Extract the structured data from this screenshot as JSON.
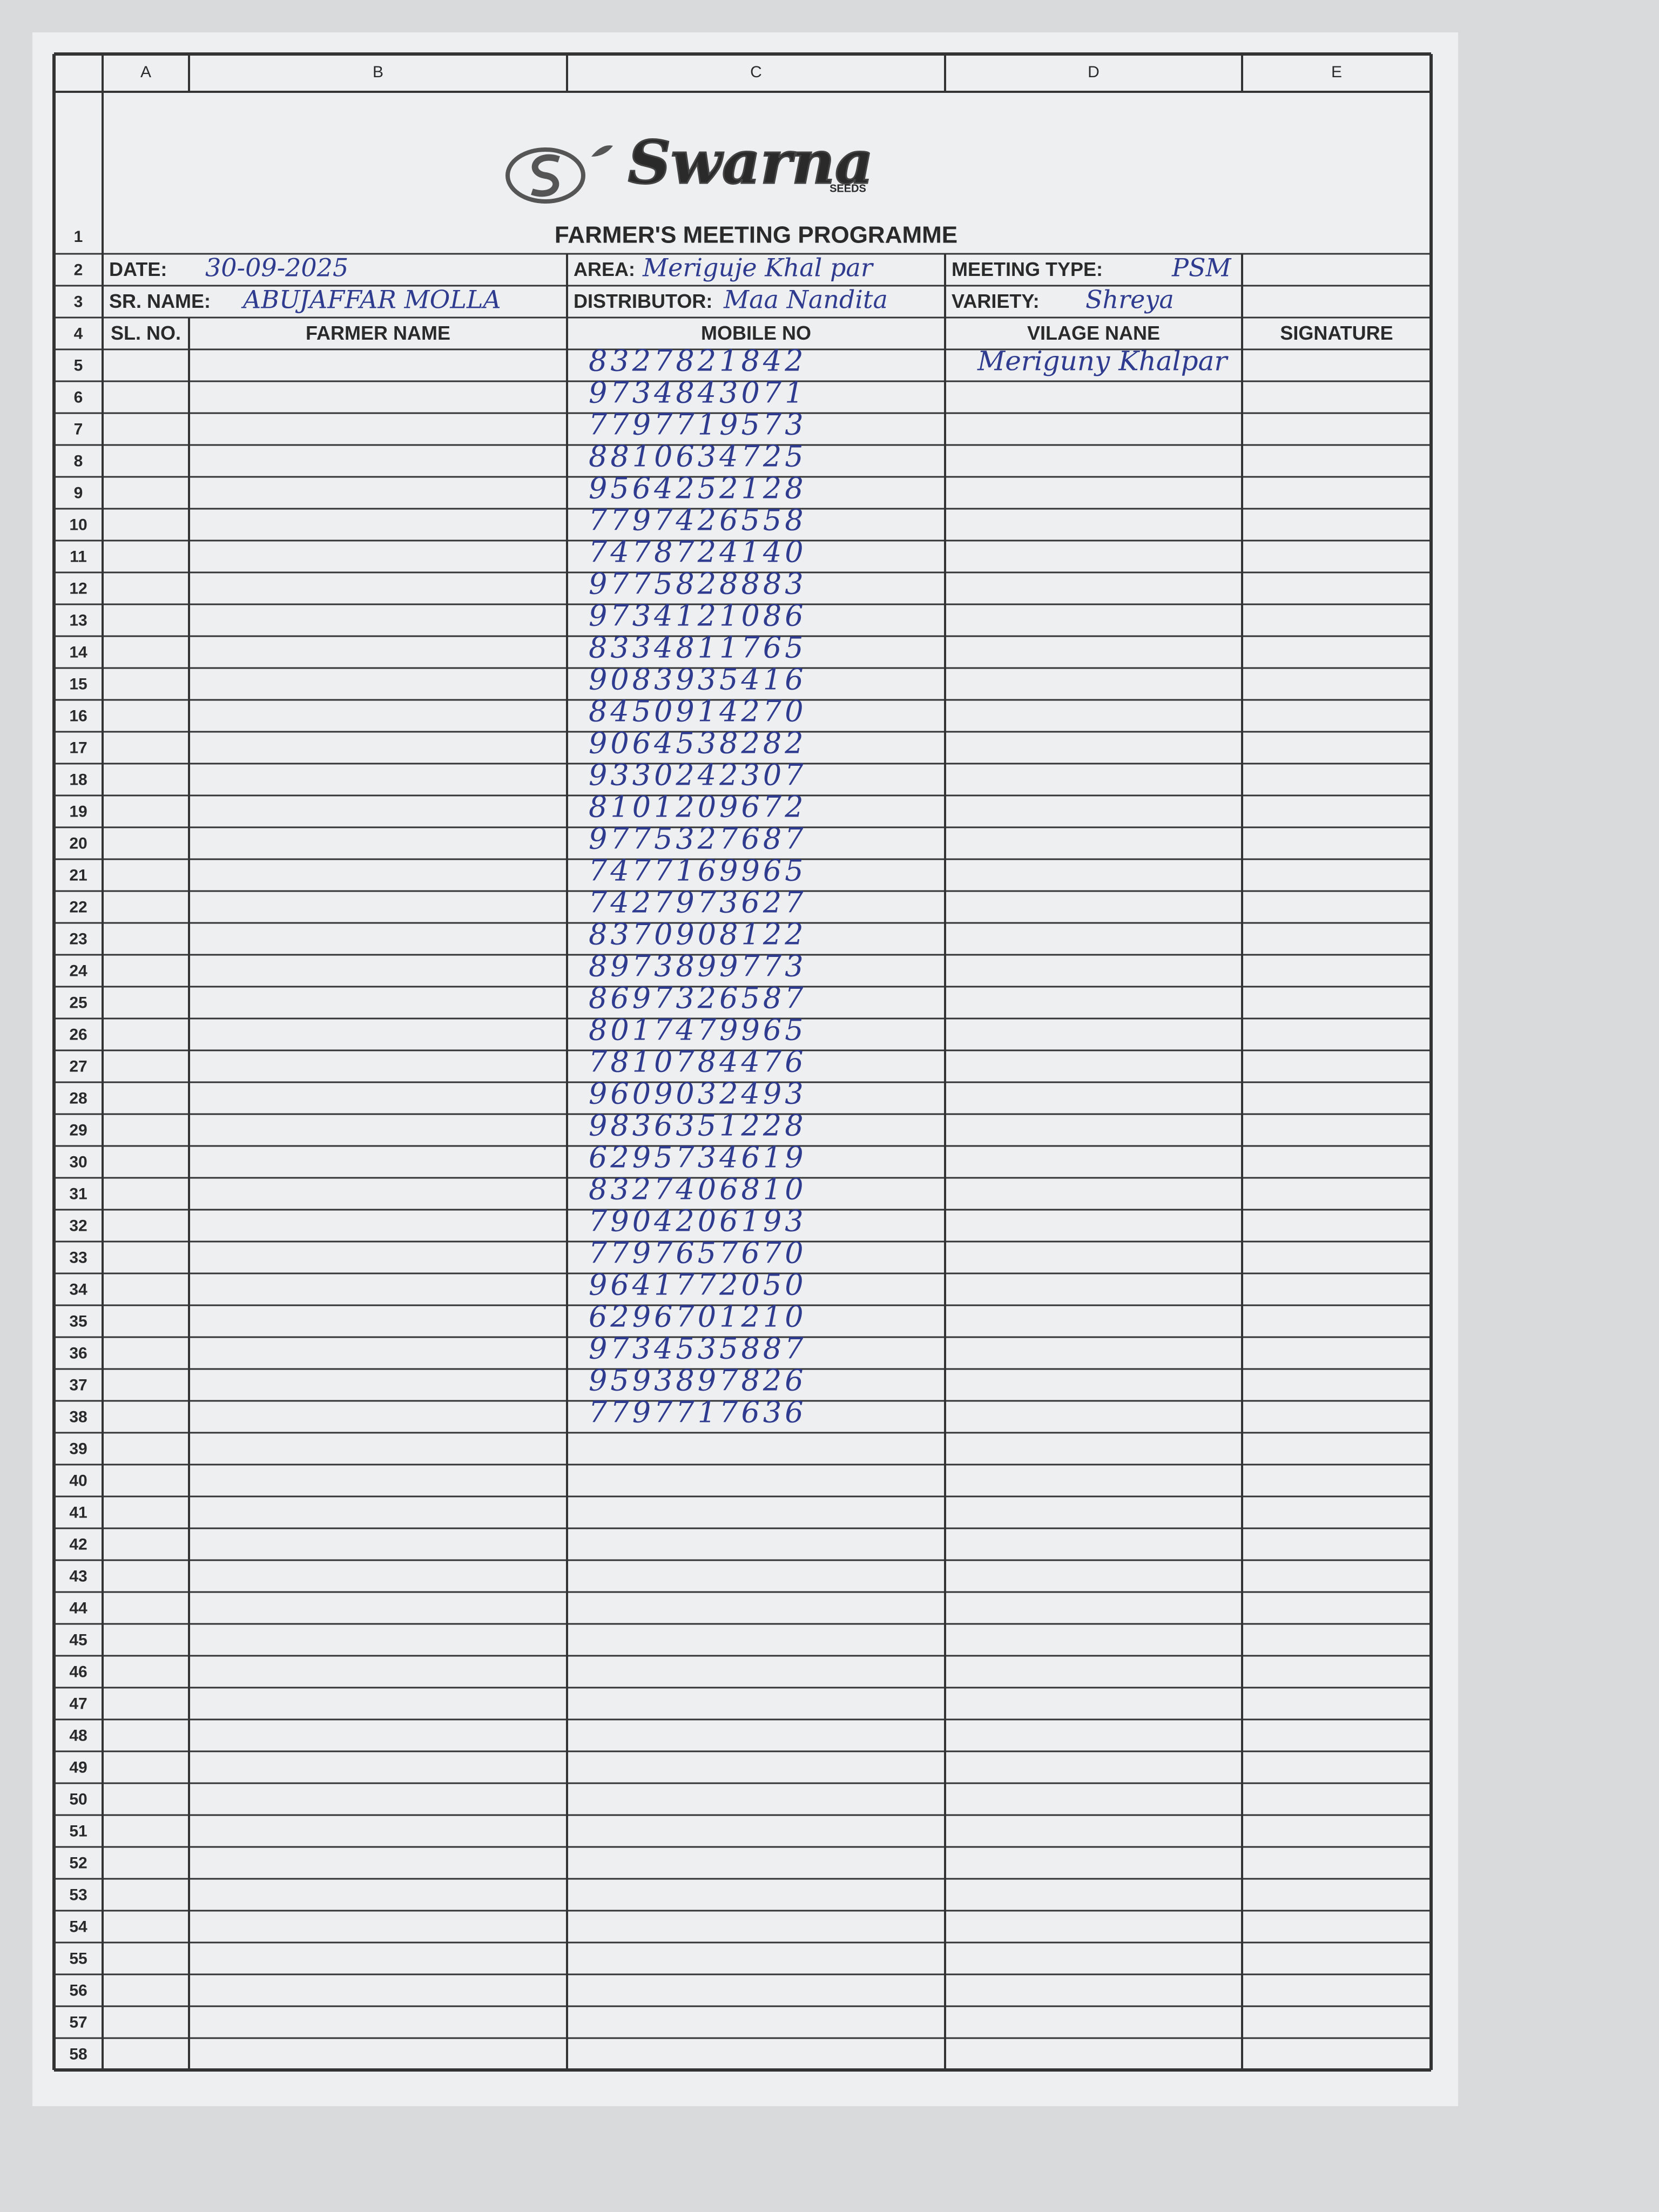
{
  "logo": {
    "brand": "Swarna",
    "sub": "SEEDS"
  },
  "column_letters": [
    "A",
    "B",
    "C",
    "D",
    "E"
  ],
  "row_numbers": [
    1,
    2,
    3,
    4,
    5,
    6,
    7,
    8,
    9,
    10,
    11,
    12,
    13,
    14,
    15,
    16,
    17,
    18,
    19,
    20,
    21,
    22,
    23,
    24,
    25,
    26,
    27,
    28,
    29,
    30,
    31,
    32,
    33,
    34,
    35,
    36,
    37,
    38,
    39,
    40,
    41,
    42,
    43,
    44,
    45,
    46,
    47,
    48,
    49,
    50,
    51,
    52,
    53,
    54,
    55,
    56,
    57,
    58
  ],
  "title": "FARMER'S MEETING PROGRAMME",
  "fields": {
    "date_label": "DATE:",
    "date": "30-09-2025",
    "area_label": "AREA:",
    "area": "Meriguje Khal par",
    "meeting_type_label": "MEETING TYPE:",
    "meeting_type": "PSM",
    "sr_name_label": "SR. NAME:",
    "sr_name": "ABUJAFFAR MOLLA",
    "distributor_label": "DISTRIBUTOR:",
    "distributor": "Maa Nandita",
    "variety_label": "VARIETY:",
    "variety": "Shreya"
  },
  "table": {
    "headers": [
      "SL. NO.",
      "FARMER NAME",
      "MOBILE NO",
      "VILAGE NANE",
      "SIGNATURE"
    ],
    "village": "Meriguny Khalpar",
    "mobiles": [
      "8327821842",
      "9734843071",
      "7797719573",
      "8810634725",
      "9564252128",
      "7797426558",
      "7478724140",
      "9775828883",
      "9734121086",
      "8334811765",
      "9083935416",
      "8450914270",
      "9064538282",
      "9330242307",
      "8101209672",
      "9775327687",
      "7477169965",
      "7427973627",
      "8370908122",
      "8973899773",
      "8697326587",
      "8017479965",
      "7810784476",
      "9609032493",
      "9836351228",
      "6295734619",
      "8327406810",
      "7904206193",
      "7797657670",
      "9641772050",
      "6296701210",
      "9734535887",
      "9593897826",
      "7797717636"
    ]
  }
}
